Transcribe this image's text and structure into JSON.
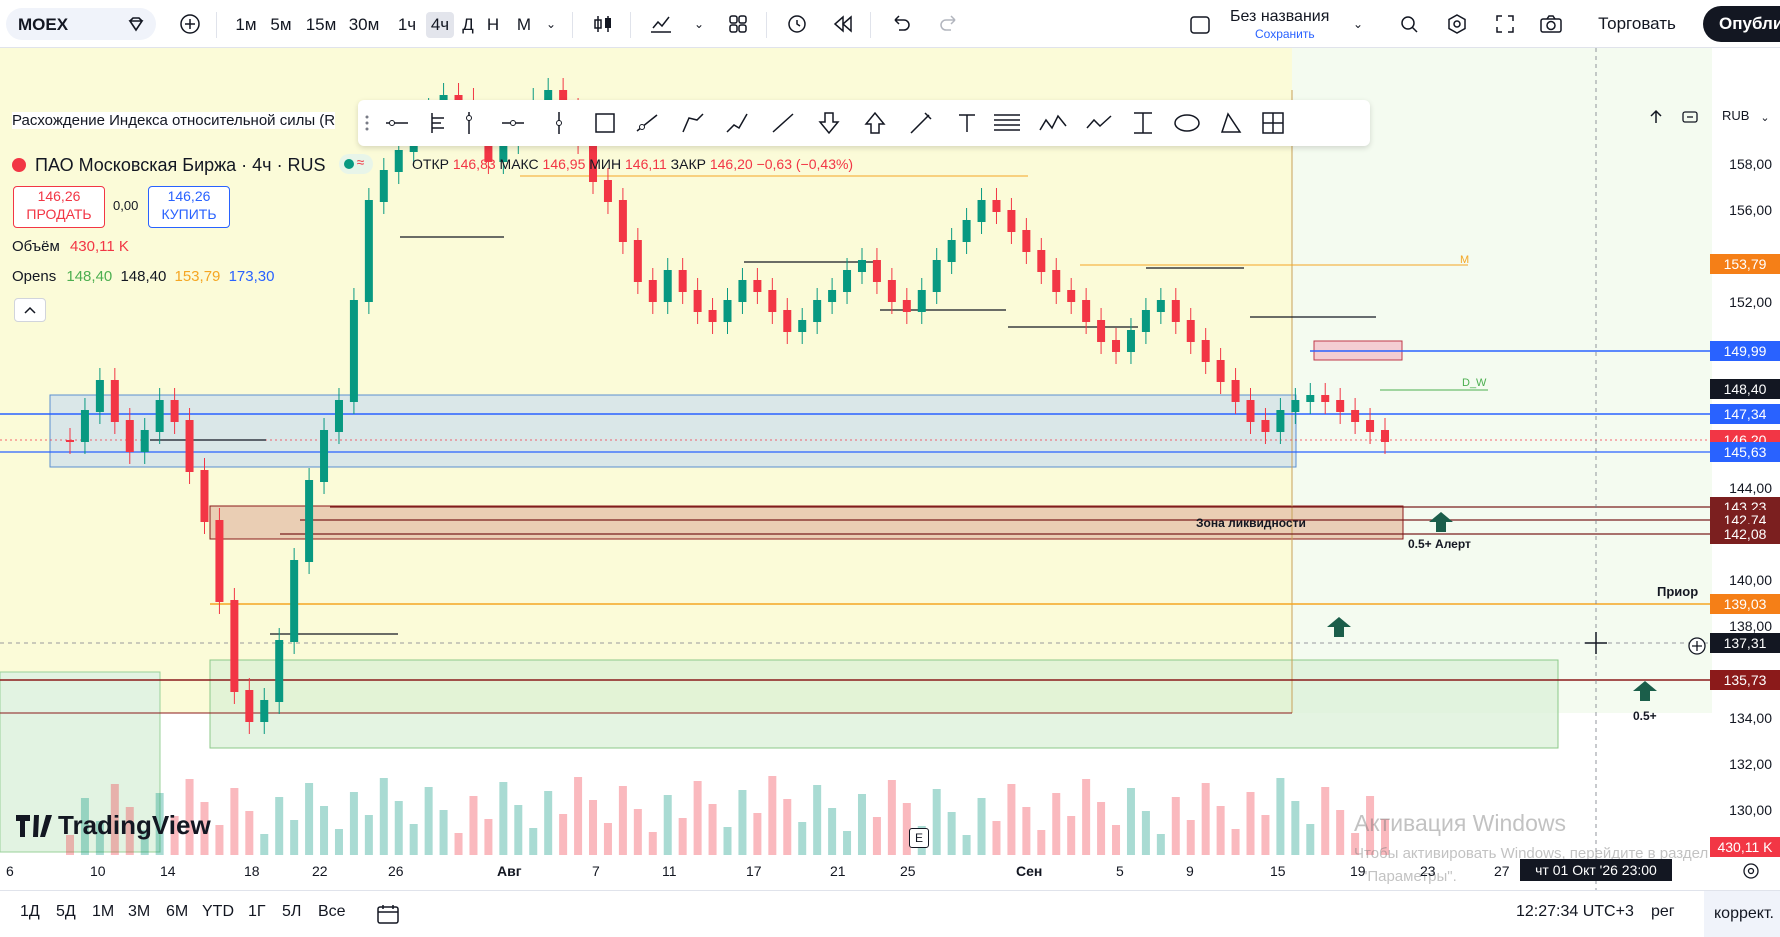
{
  "topbar": {
    "symbol": "MOEX",
    "timeframes": [
      "1м",
      "5м",
      "15м",
      "30м",
      "1ч",
      "4ч",
      "Д",
      "Н",
      "М"
    ],
    "active_timeframe": "4ч",
    "layout_title": "Без названия",
    "layout_subtitle": "Сохранить",
    "trade_label": "Торговать",
    "publish_label": "Опубли"
  },
  "legend": {
    "indicator_title": "Расхождение Индекса относительной силы (R",
    "symbol_line": "ПАО Московская Биржа · 4ч · RUS",
    "open_label": "ОТКР",
    "open_value": "146,83",
    "high_label": "МАКС",
    "high_value": "146,95",
    "low_label": "МИН",
    "low_value": "146,11",
    "close_label": "ЗАКР",
    "close_value": "146,20",
    "change_value": "−0,63 (−0,43%)",
    "sell_price": "146,26",
    "sell_label": "ПРОДАТЬ",
    "spread": "0,00",
    "buy_price": "146,26",
    "buy_label": "КУПИТЬ",
    "volume_label": "Объём",
    "volume_value": "430,11 K",
    "opens_label": "Opens",
    "opens_values": [
      "148,40",
      "148,40",
      "153,79",
      "173,30"
    ]
  },
  "chart": {
    "currency": "RUB",
    "price_scale": [
      "158,00",
      "156,00",
      "152,00",
      "144,00",
      "140,00",
      "138,00",
      "134,00",
      "132,00",
      "130,00"
    ],
    "price_tags": [
      {
        "text": "153,79",
        "color": "#f57f17"
      },
      {
        "text": "149,99",
        "color": "#2962ff"
      },
      {
        "text": "148,40",
        "color": "#131722"
      },
      {
        "text": "147,34",
        "color": "#2962ff"
      },
      {
        "text": "146,20",
        "color": "#f23645"
      },
      {
        "text": "145,63",
        "color": "#2962ff"
      },
      {
        "text": "143,23",
        "color": "#7b1f1f"
      },
      {
        "text": "142,74",
        "color": "#7b1f1f"
      },
      {
        "text": "142,08",
        "color": "#7b1f1f"
      },
      {
        "text": "139,03",
        "color": "#f57f17"
      },
      {
        "text": "137,31",
        "color": "#131722"
      },
      {
        "text": "135,73",
        "color": "#8b1a1a"
      },
      {
        "text": "430,11 K",
        "color": "#f23645"
      }
    ],
    "time_axis": [
      "6",
      "10",
      "14",
      "18",
      "22",
      "26",
      "Авг",
      "7",
      "11",
      "17",
      "21",
      "25",
      "Сен",
      "5",
      "9",
      "15",
      "19",
      "23",
      "27"
    ],
    "crosshair_time": "чт 01 Окт '26   23:00",
    "annotations": {
      "liquidity_zone": "Зона ликвидности",
      "alert_1": "0.5+ Алерт",
      "alert_2": "0.5+",
      "prior": "Приор",
      "m_label": "M",
      "dw_label": "D_W",
      "earnings_marker": "E"
    },
    "watermark_brand": "TradingView",
    "windows_watermark_1": "Активация Windows",
    "windows_watermark_2": "Чтобы активировать Windows, перейдите в раздел",
    "windows_watermark_3": "\"Параметры\"."
  },
  "bottombar": {
    "ranges": [
      "1Д",
      "5Д",
      "1М",
      "3М",
      "6М",
      "YTD",
      "1Г",
      "5Л",
      "Все"
    ],
    "clock": "12:27:34 UTC+3",
    "session": "рег",
    "adjust": "коррект."
  }
}
